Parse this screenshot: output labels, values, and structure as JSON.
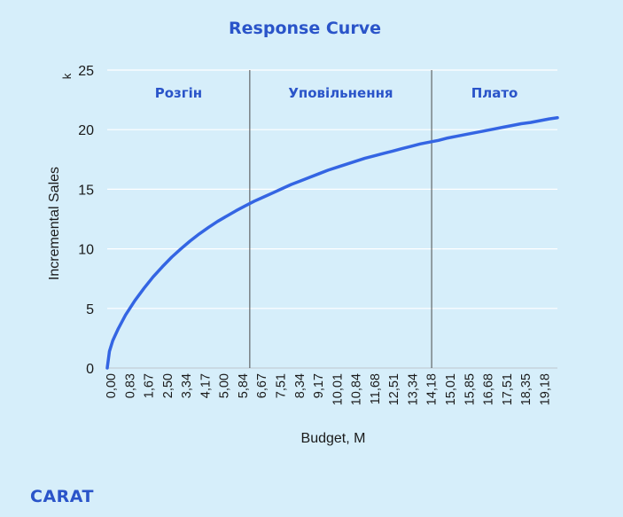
{
  "brand": "CARAT",
  "chart_data": {
    "type": "line",
    "title": "Response Curve",
    "xlabel": "Budget, M",
    "ylabel": "Incremental Sales",
    "yunit": "k",
    "ylim": [
      0,
      25
    ],
    "yticks": [
      0,
      5,
      10,
      15,
      20,
      25
    ],
    "grid": true,
    "x_categories": [
      "0,00",
      "0,83",
      "1,67",
      "2,50",
      "3,34",
      "4,17",
      "5,00",
      "5,84",
      "6,67",
      "7,51",
      "8,34",
      "9,17",
      "10,01",
      "10,84",
      "11,68",
      "12,51",
      "13,34",
      "14,18",
      "15,01",
      "15,85",
      "16,68",
      "17,51",
      "18,35",
      "19,18"
    ],
    "xlim": [
      0,
      20.4
    ],
    "zone_boundaries": [
      6.46,
      14.7
    ],
    "zones": [
      "Розгін",
      "Уповільнення",
      "Плато"
    ],
    "line_color": "#3465e3",
    "series": [
      {
        "x": [
          0,
          0.1,
          0.25,
          0.5,
          0.83,
          1.25,
          1.67,
          2.08,
          2.5,
          2.92,
          3.34,
          3.75,
          4.17,
          4.59,
          5.0,
          5.42,
          5.84,
          6.25,
          6.67,
          7.09,
          7.51,
          7.92,
          8.34,
          8.76,
          9.17,
          9.59,
          10.01,
          10.42,
          10.84,
          11.26,
          11.68,
          12.09,
          12.51,
          12.93,
          13.34,
          13.76,
          14.18,
          14.59,
          15.01,
          15.43,
          15.85,
          16.26,
          16.68,
          17.1,
          17.51,
          17.93,
          18.35,
          18.76,
          19.18,
          19.6,
          20.02,
          20.4
        ],
        "y": [
          0,
          1.4,
          2.3,
          3.3,
          4.45,
          5.65,
          6.7,
          7.65,
          8.5,
          9.3,
          10.0,
          10.65,
          11.25,
          11.8,
          12.3,
          12.75,
          13.2,
          13.6,
          14.0,
          14.35,
          14.7,
          15.05,
          15.4,
          15.7,
          16.0,
          16.3,
          16.6,
          16.85,
          17.1,
          17.35,
          17.6,
          17.8,
          18.0,
          18.2,
          18.4,
          18.6,
          18.8,
          18.95,
          19.1,
          19.3,
          19.45,
          19.6,
          19.75,
          19.9,
          20.05,
          20.2,
          20.35,
          20.5,
          20.6,
          20.75,
          20.9,
          21.0
        ]
      }
    ]
  }
}
